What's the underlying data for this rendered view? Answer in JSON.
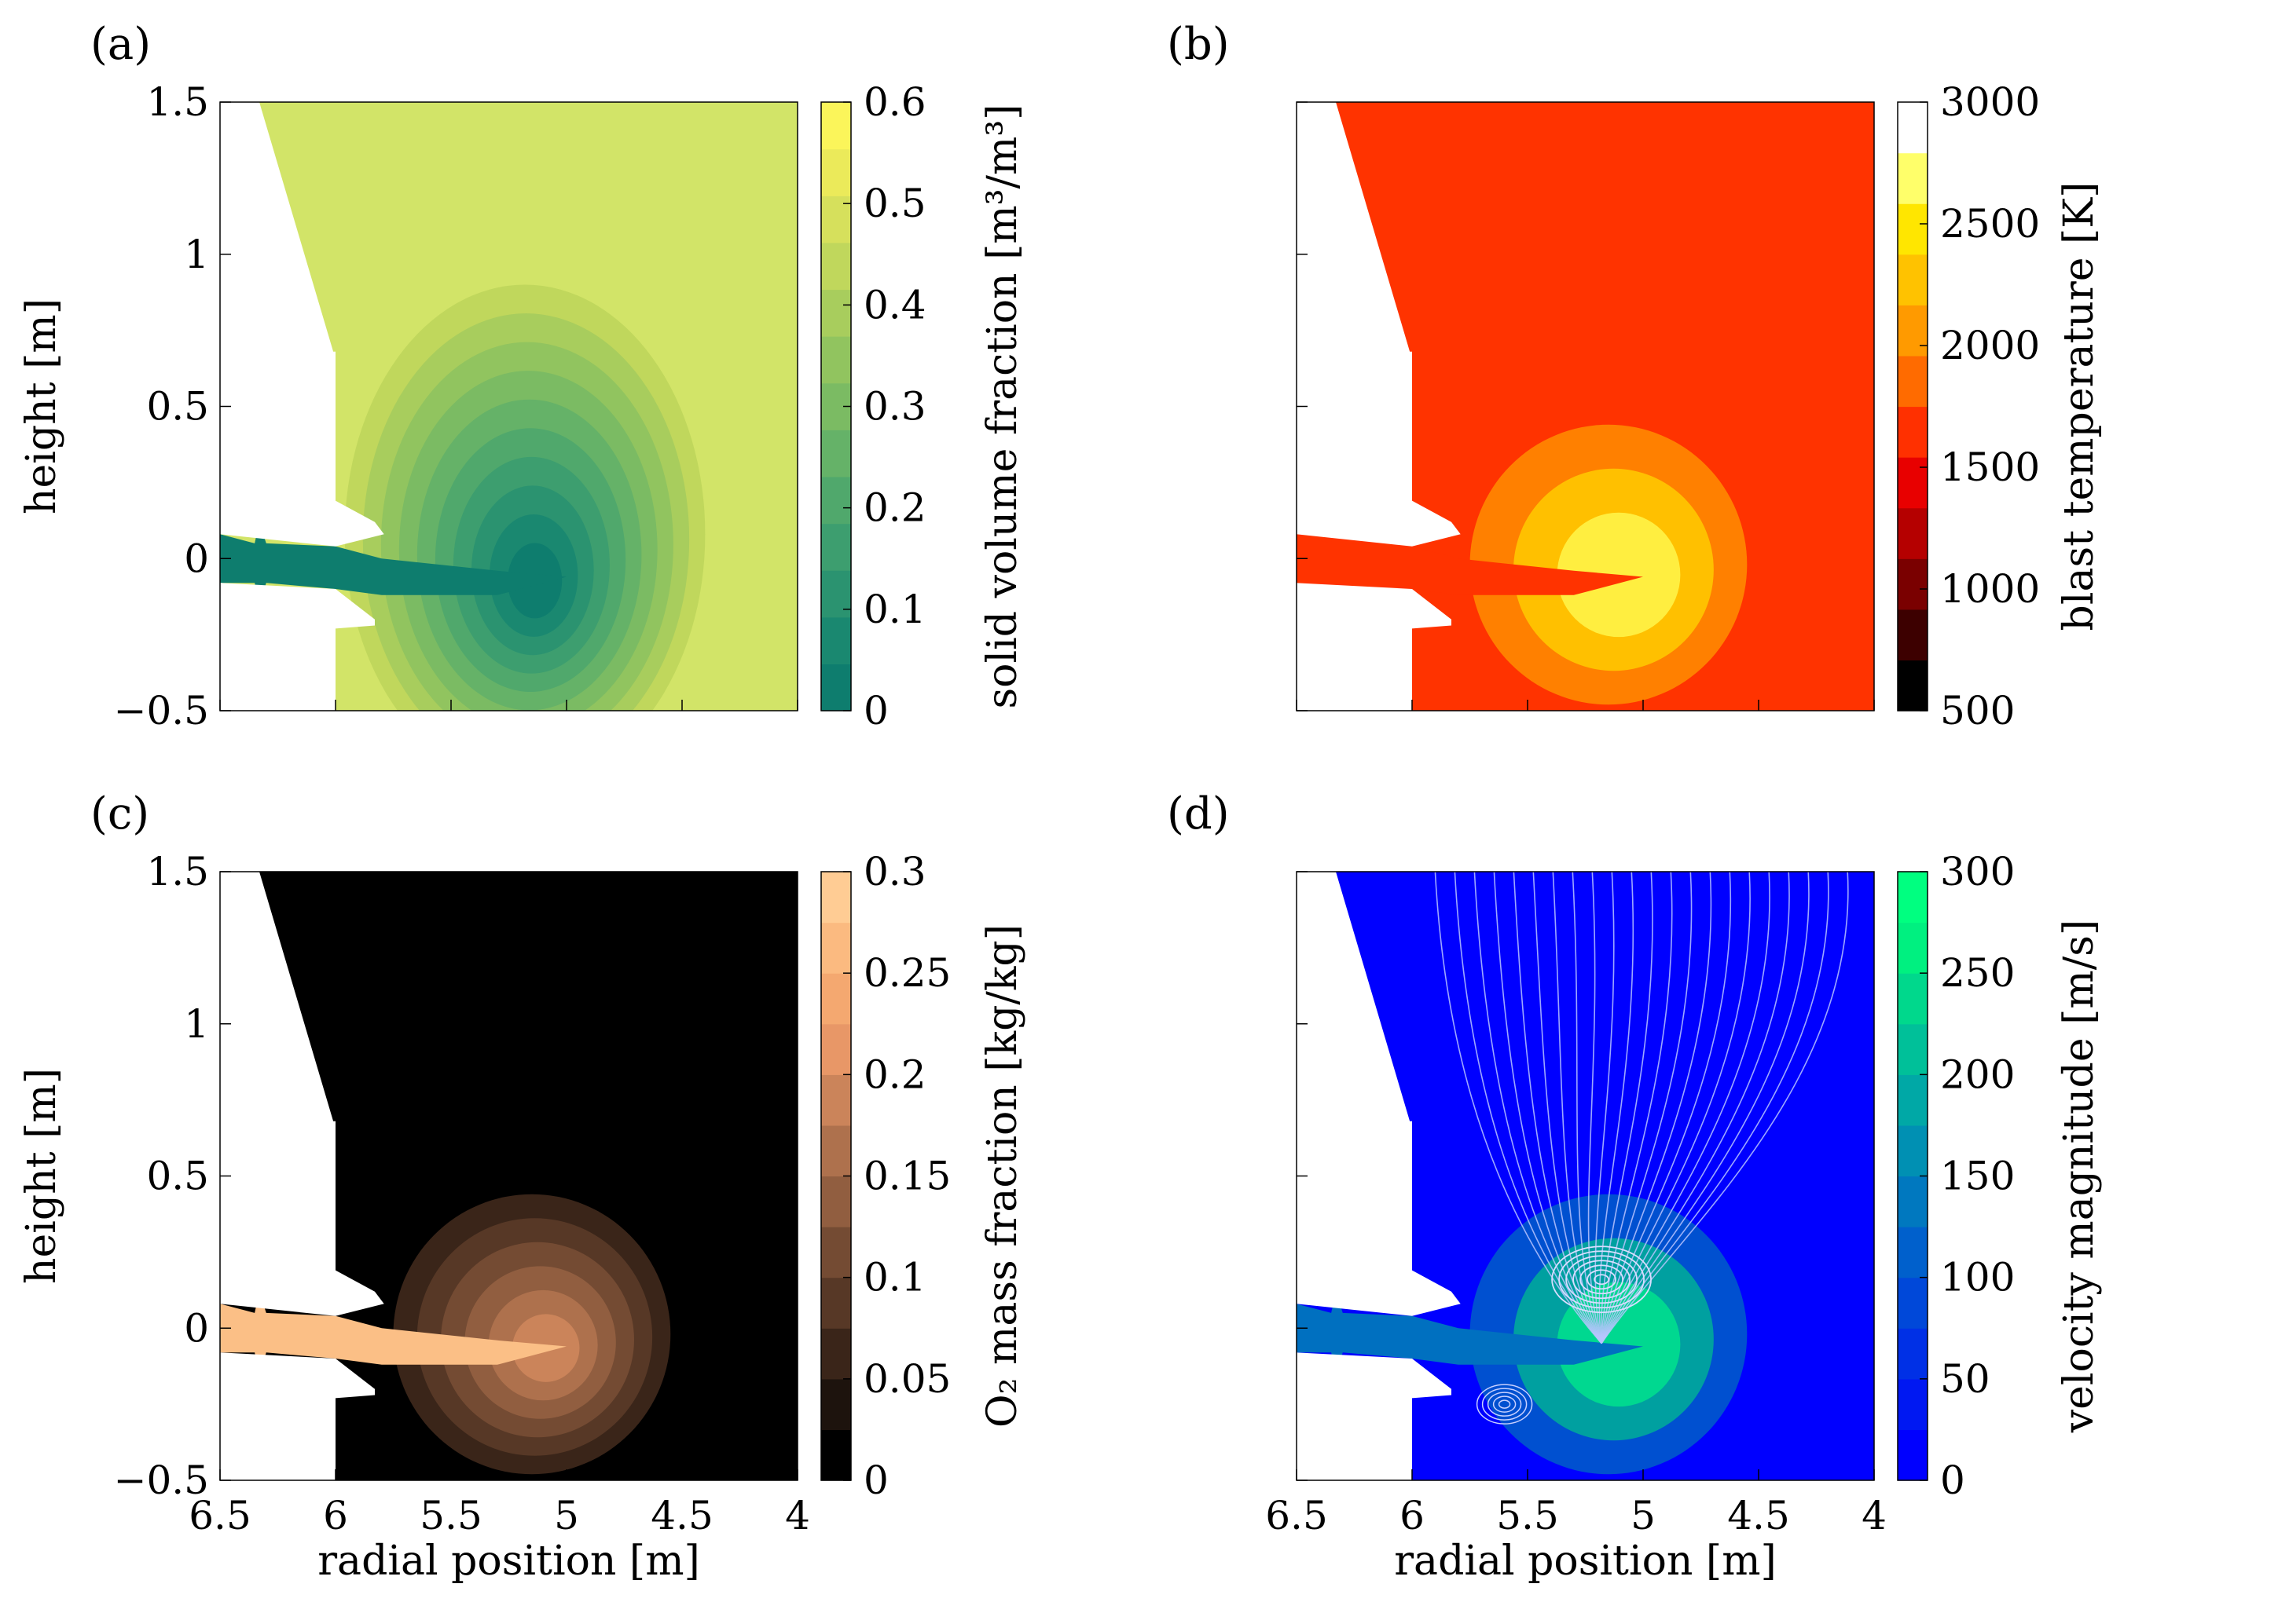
{
  "figure": {
    "panels": [
      {
        "id": "a",
        "panel_label": "(a)",
        "ylabel": "height [m]",
        "xlabel": "",
        "cb_label": "solid volume fraction [m³/m³]",
        "cb_ticks": [
          "0",
          "0.1",
          "0.2",
          "0.3",
          "0.4",
          "0.5",
          "0.6"
        ],
        "cb_colors": [
          "#0e7d6e",
          "#1a8870",
          "#2b9370",
          "#3d9e6f",
          "#50a86c",
          "#65b268",
          "#7bbb63",
          "#91c45f",
          "#a8cd5d",
          "#c0d75c",
          "#d6e05c",
          "#ebea5a",
          "#fbf55a"
        ],
        "background": "#d2e468",
        "plume_colors": [
          "#c0d75c",
          "#a8cd5d",
          "#91c45f",
          "#7bbb63",
          "#65b268",
          "#50a86c",
          "#3d9e6f",
          "#2b9370",
          "#1a8870",
          "#0e7d6e"
        ],
        "tuyere_color": "#0e7d6e"
      },
      {
        "id": "b",
        "panel_label": "(b)",
        "ylabel": "",
        "xlabel": "",
        "cb_label": "blast temperature [K]",
        "cb_ticks": [
          "500",
          "1000",
          "1500",
          "2000",
          "2500",
          "3000"
        ],
        "cb_colors": [
          "#000000",
          "#3d0000",
          "#7a0000",
          "#b50000",
          "#e80000",
          "#ff3000",
          "#ff6b00",
          "#ff9a00",
          "#ffc200",
          "#ffe600",
          "#ffff6a",
          "#ffffff"
        ],
        "background": "#ff3300",
        "plume_colors": [
          "#ff8000",
          "#ffc000",
          "#ffee40"
        ],
        "tuyere_color": "#ff3300"
      },
      {
        "id": "c",
        "panel_label": "(c)",
        "ylabel": "height [m]",
        "xlabel": "radial position [m]",
        "cb_label": "O₂ mass fraction [kg/kg]",
        "cb_ticks": [
          "0",
          "0.05",
          "0.1",
          "0.15",
          "0.2",
          "0.25",
          "0.3"
        ],
        "cb_colors": [
          "#000000",
          "#1d130d",
          "#3a2519",
          "#573826",
          "#744b33",
          "#915e40",
          "#ae714d",
          "#cb845a",
          "#e89767",
          "#f4a870",
          "#fbba80",
          "#ffcc94"
        ],
        "background": "#000000",
        "plume_colors": [
          "#3a2519",
          "#573826",
          "#744b33",
          "#915e40",
          "#ae714d",
          "#cb845a"
        ],
        "tuyere_color": "#fbbf86"
      },
      {
        "id": "d",
        "panel_label": "(d)",
        "ylabel": "",
        "xlabel": "radial position [m]",
        "cb_label": "velocity magnitude [m/s]",
        "cb_ticks": [
          "0",
          "50",
          "100",
          "150",
          "200",
          "250",
          "300"
        ],
        "cb_colors": [
          "#0000ff",
          "#0018f2",
          "#0030e6",
          "#0048d9",
          "#0060cc",
          "#0078bf",
          "#0090b3",
          "#00a8a6",
          "#00c099",
          "#00d88c",
          "#00f080",
          "#00ff80"
        ],
        "background": "#0000ff",
        "plume_colors": [
          "#0050d0",
          "#00a0a0",
          "#00d890"
        ],
        "tuyere_color": "#0070c0"
      }
    ],
    "axes": {
      "xlim": [
        6.5,
        4
      ],
      "ylim": [
        -0.5,
        1.5
      ],
      "xticks": [
        "6.5",
        "6",
        "5.5",
        "5",
        "4.5",
        "4"
      ],
      "yticks": [
        "1.5",
        "1",
        "0.5",
        "0",
        "−0.5"
      ]
    }
  },
  "chart_data": [
    {
      "type": "heatmap",
      "panel": "(a)",
      "title": "",
      "xlabel": "",
      "ylabel": "height [m]",
      "xlim": [
        6.5,
        4
      ],
      "ylim": [
        -0.5,
        1.5
      ],
      "colorbar_label": "solid volume fraction [m3/m3]",
      "colorbar_range": [
        0,
        0.6
      ],
      "colorbar_levels": 13
    },
    {
      "type": "heatmap",
      "panel": "(b)",
      "title": "",
      "xlabel": "",
      "ylabel": "",
      "xlim": [
        6.5,
        4
      ],
      "ylim": [
        -0.5,
        1.5
      ],
      "colorbar_label": "blast temperature [K]",
      "colorbar_range": [
        500,
        3000
      ],
      "colorbar_levels": 12
    },
    {
      "type": "heatmap",
      "panel": "(c)",
      "title": "",
      "xlabel": "radial position [m]",
      "ylabel": "height [m]",
      "xlim": [
        6.5,
        4
      ],
      "ylim": [
        -0.5,
        1.5
      ],
      "colorbar_label": "O2 mass fraction [kg/kg]",
      "colorbar_range": [
        0,
        0.3
      ],
      "colorbar_levels": 12
    },
    {
      "type": "heatmap",
      "panel": "(d)",
      "title": "",
      "xlabel": "radial position [m]",
      "ylabel": "",
      "xlim": [
        6.5,
        4
      ],
      "ylim": [
        -0.5,
        1.5
      ],
      "colorbar_label": "velocity magnitude [m/s]",
      "colorbar_range": [
        0,
        300
      ],
      "colorbar_levels": 12,
      "overlay": "streamlines"
    }
  ]
}
